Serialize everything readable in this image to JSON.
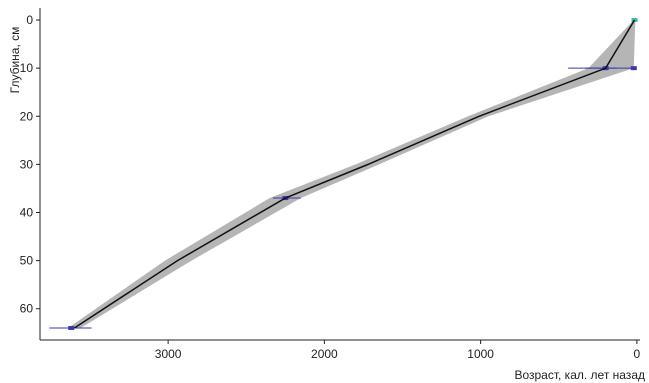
{
  "chart_data": {
    "type": "line",
    "title": "",
    "xlabel": "Возраст, кал. лет назад",
    "ylabel": "Глубина, см",
    "xlim": [
      -20,
      3820
    ],
    "ylim": [
      66.5,
      -2.5
    ],
    "x_reversed": true,
    "y_reversed": true,
    "grid": false,
    "x_ticks": [
      3000,
      2000,
      1000,
      0
    ],
    "y_ticks": [
      0,
      10,
      20,
      30,
      40,
      50,
      60
    ],
    "x_tick_labels": [
      "3000",
      "2000",
      "1000",
      "0"
    ],
    "y_tick_labels": [
      "0",
      "10",
      "20",
      "30",
      "40",
      "50",
      "60"
    ],
    "colors": {
      "envelope": "#b5b5b5",
      "median": "#111111",
      "dates": "#3a3aa8",
      "top": "#3cb8b0"
    },
    "series": [
      {
        "type": "area-band",
        "depth": [
          0,
          10,
          20,
          30,
          37,
          50,
          64
        ],
        "age_min": [
          10,
          20,
          950,
          1650,
          2150,
          2850,
          3560
        ],
        "age_max": [
          20,
          310,
          1080,
          1800,
          2350,
          3020,
          3640
        ]
      },
      {
        "type": "line",
        "depth": [
          0,
          10,
          20,
          30,
          37,
          50,
          64
        ],
        "age": [
          15,
          200,
          1010,
          1720,
          2250,
          2940,
          3600
        ]
      }
    ],
    "dated_levels": [
      {
        "depth": 0,
        "age": 15,
        "age_min": 0,
        "age_max": 30,
        "kind": "top"
      },
      {
        "depth": 10,
        "age": 20,
        "age_min": 0,
        "age_max": 440
      },
      {
        "depth": 10,
        "age": 200,
        "age_min": 130,
        "age_max": 330
      },
      {
        "depth": 37,
        "age": 2250,
        "age_min": 2150,
        "age_max": 2330
      },
      {
        "depth": 64,
        "age": 3620,
        "age_min": 3490,
        "age_max": 3760
      }
    ]
  }
}
